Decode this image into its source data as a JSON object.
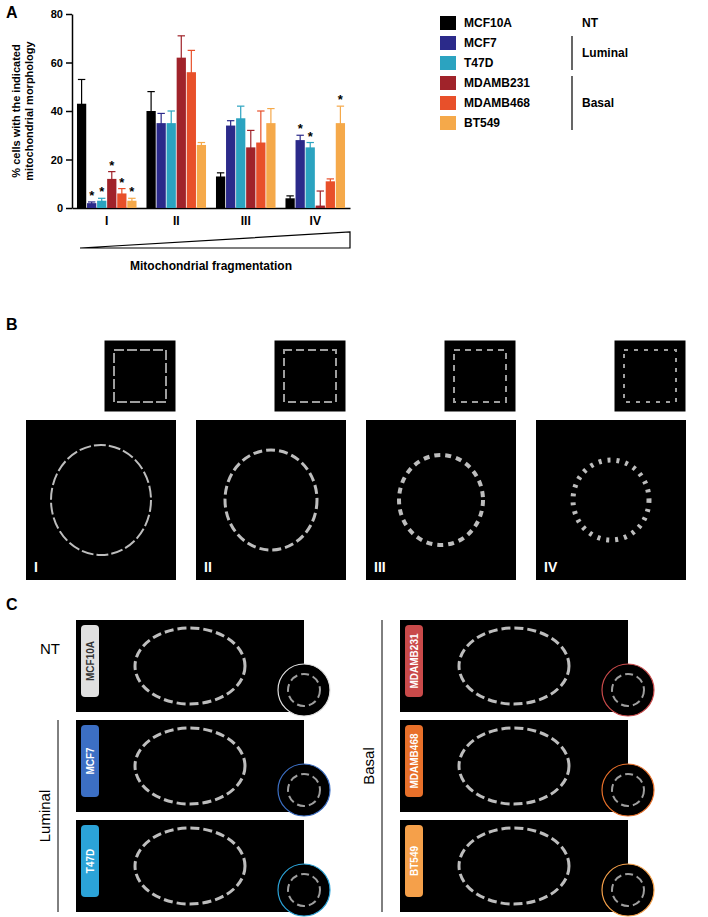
{
  "panel_labels": [
    "A",
    "B",
    "C"
  ],
  "chart_data": {
    "type": "bar",
    "xlabel": "Mitochondrial fragmentation",
    "ylabel": "% cells with the indicated mitochondrial morphology",
    "categories": [
      "I",
      "II",
      "III",
      "IV"
    ],
    "ylim": [
      0,
      80
    ],
    "yticks": [
      0,
      20,
      40,
      60,
      80
    ],
    "legend": "right",
    "series": [
      {
        "name": "MCF10A",
        "color": "#000000",
        "values": [
          43,
          40,
          13,
          4
        ],
        "errors": [
          10,
          8,
          1.5,
          1
        ],
        "significance": [
          null,
          null,
          null,
          null
        ]
      },
      {
        "name": "MCF7",
        "color": "#2b2a8a",
        "values": [
          2,
          35,
          34,
          28
        ],
        "errors": [
          0.5,
          4,
          2,
          2
        ],
        "significance": [
          "*",
          null,
          null,
          "*"
        ]
      },
      {
        "name": "T47D",
        "color": "#2ba3c0",
        "values": [
          3,
          35,
          37,
          25
        ],
        "errors": [
          1,
          5,
          5,
          2
        ],
        "significance": [
          "*",
          null,
          null,
          "*"
        ]
      },
      {
        "name": "MDAMB231",
        "color": "#a0232a",
        "values": [
          12,
          62,
          25,
          1
        ],
        "errors": [
          3,
          9,
          7,
          6
        ],
        "significance": [
          "*",
          null,
          null,
          null
        ]
      },
      {
        "name": "MDAMB468",
        "color": "#e8502a",
        "values": [
          6,
          56,
          27,
          11
        ],
        "errors": [
          2,
          9,
          13,
          1
        ],
        "significance": [
          "*",
          null,
          null,
          null
        ]
      },
      {
        "name": "BT549",
        "color": "#f5a94a",
        "values": [
          3,
          26,
          35,
          35
        ],
        "errors": [
          1,
          1,
          6,
          7
        ],
        "significance": [
          "*",
          null,
          null,
          "*"
        ]
      }
    ],
    "legend_groups": [
      {
        "label": "NT",
        "members": [
          "MCF10A"
        ]
      },
      {
        "label": "Luminal",
        "members": [
          "MCF7",
          "T47D"
        ]
      },
      {
        "label": "Basal",
        "members": [
          "MDAMB231",
          "MDAMB468",
          "BT549"
        ]
      }
    ]
  },
  "panel_b": {
    "labels": [
      "I",
      "II",
      "III",
      "IV"
    ]
  },
  "panel_c": {
    "groups": [
      {
        "label": "NT",
        "cells": [
          {
            "label": "MCF10A",
            "color": "#e0e0e0"
          }
        ]
      },
      {
        "label": "Luminal",
        "cells": [
          {
            "label": "MCF7",
            "color": "#3c6fc4"
          },
          {
            "label": "T47D",
            "color": "#2ba3d8"
          }
        ]
      },
      {
        "label": "Basal",
        "cells": [
          {
            "label": "MDAMB231",
            "color": "#c94a4a"
          },
          {
            "label": "MDAMB468",
            "color": "#e8702a"
          },
          {
            "label": "BT549",
            "color": "#f5a04a"
          }
        ]
      }
    ]
  }
}
